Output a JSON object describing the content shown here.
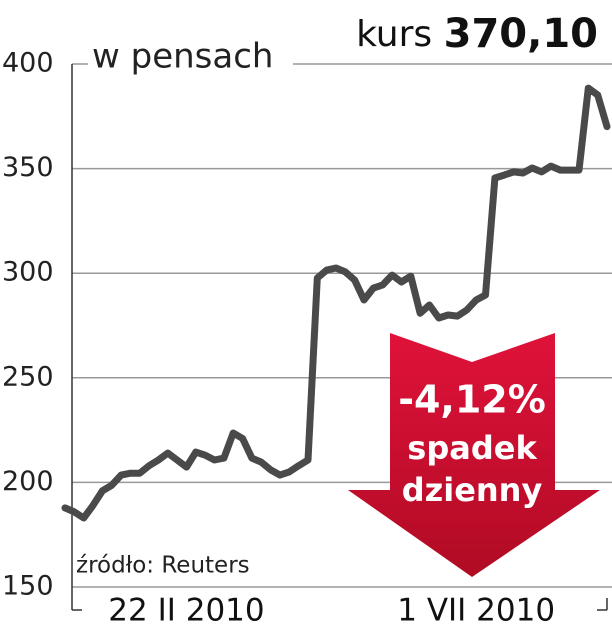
{
  "chart_data": {
    "type": "line",
    "title": {
      "prefix": "kurs",
      "value": "370,10"
    },
    "y_label": "w pensach",
    "source": "źródło: Reuters",
    "annotation": {
      "change": "-4,12%",
      "line1": "spadek",
      "line2": "dzienny",
      "color": "#c8102e"
    },
    "categories": [
      null,
      null,
      null,
      null,
      null,
      null,
      null,
      null,
      null,
      null,
      null,
      null,
      null,
      "22 II 2010",
      null,
      null,
      null,
      null,
      null,
      null,
      null,
      null,
      null,
      null,
      null,
      null,
      null,
      null,
      null,
      null,
      null,
      null,
      null,
      null,
      null,
      null,
      null,
      null,
      null,
      null,
      null,
      null,
      null,
      null,
      "1 VII 2010",
      null,
      null,
      null,
      null,
      null,
      null,
      null,
      null,
      null,
      null,
      null,
      null,
      null,
      null
    ],
    "series": [
      {
        "name": "kurs",
        "color": "#4a4a4a",
        "values": [
          187.8,
          185.9,
          183,
          189,
          196,
          198.6,
          203.5,
          204.4,
          204.4,
          208,
          210.7,
          214,
          210.7,
          207.3,
          214.5,
          213,
          210.7,
          211.6,
          223.6,
          221,
          211.6,
          209.7,
          206,
          203.5,
          205,
          208,
          210.7,
          297.7,
          301.5,
          302.5,
          300.6,
          296.7,
          287.2,
          292.9,
          294.4,
          299.1,
          295.8,
          298.6,
          280.9,
          284.8,
          278.6,
          280,
          279.5,
          282.4,
          287.2,
          289.6,
          345.5,
          346.9,
          348.4,
          347.9,
          350.3,
          348.4,
          351.2,
          349.3,
          349.3,
          349.3,
          388.5,
          385.2,
          370.1
        ]
      }
    ],
    "ylim": [
      150,
      400
    ],
    "yticks": [
      150,
      200,
      250,
      300,
      350,
      400
    ],
    "grid": true
  }
}
